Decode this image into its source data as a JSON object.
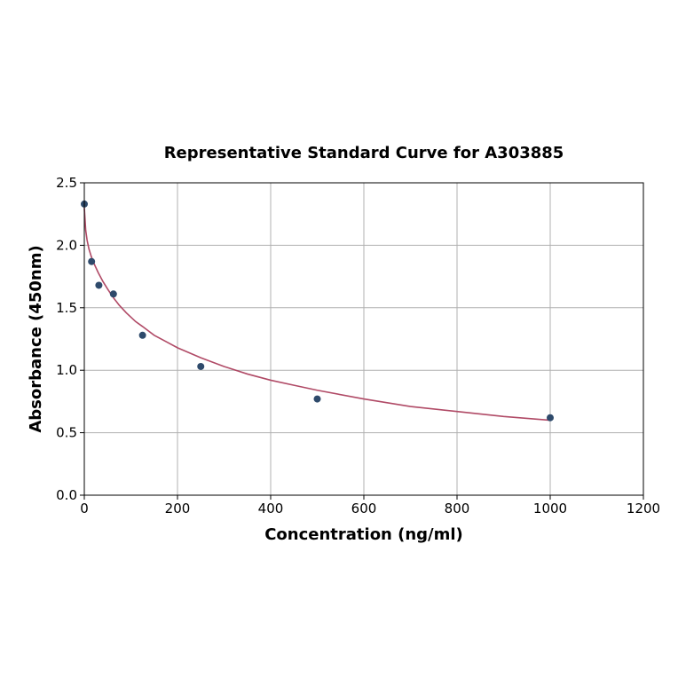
{
  "chart_data": {
    "type": "scatter",
    "title": "Representative Standard Curve for A303885",
    "xlabel": "Concentration (ng/ml)",
    "ylabel": "Absorbance (450nm)",
    "xlim": [
      0,
      1200
    ],
    "ylim": [
      0,
      2.5
    ],
    "xticks": [
      "0",
      "200",
      "400",
      "600",
      "800",
      "1000",
      "1200"
    ],
    "yticks": [
      "0.0",
      "0.5",
      "1.0",
      "1.5",
      "2.0",
      "2.5"
    ],
    "grid": true,
    "series": [
      {
        "kind": "points",
        "x": [
          0,
          15.6,
          31.25,
          62.5,
          125,
          250,
          500,
          1000
        ],
        "y": [
          2.33,
          1.87,
          1.68,
          1.61,
          1.28,
          1.03,
          0.77,
          0.62
        ]
      },
      {
        "kind": "fitted-curve",
        "x": [
          0,
          3,
          6,
          10,
          15,
          20,
          30,
          40,
          50,
          62.5,
          75,
          90,
          110,
          125,
          150,
          175,
          200,
          250,
          300,
          350,
          400,
          450,
          500,
          600,
          700,
          800,
          900,
          1000
        ],
        "y": [
          2.3,
          2.12,
          2.04,
          1.97,
          1.91,
          1.86,
          1.78,
          1.71,
          1.65,
          1.58,
          1.52,
          1.46,
          1.39,
          1.35,
          1.28,
          1.23,
          1.18,
          1.1,
          1.03,
          0.97,
          0.92,
          0.88,
          0.84,
          0.77,
          0.71,
          0.67,
          0.63,
          0.6
        ]
      }
    ],
    "colors": {
      "points": "#2e4a6b",
      "curve": "#b04a66",
      "grid": "#b0b0b0"
    }
  }
}
